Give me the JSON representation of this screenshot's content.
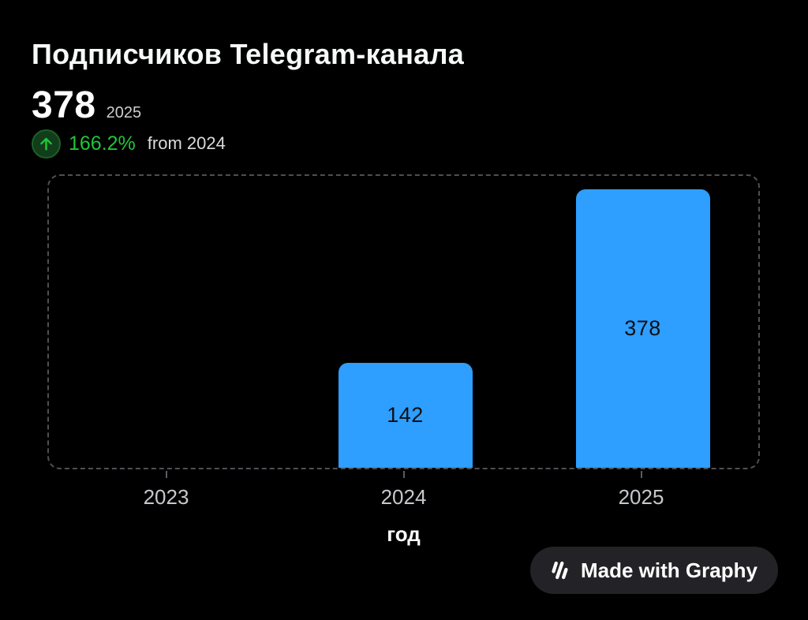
{
  "page": {
    "background_color": "#000000"
  },
  "header": {
    "title": "Подписчиков Telegram-канала",
    "kpi_value": "378",
    "kpi_year": "2025",
    "change": {
      "direction": "up",
      "percent": "166.2%",
      "reference": "from 2024",
      "accent_color": "#21c538"
    }
  },
  "chart_data": {
    "type": "bar",
    "title": "Подписчиков Telegram-канала",
    "categories": [
      "2023",
      "2024",
      "2025"
    ],
    "values": [
      0,
      142,
      378
    ],
    "value_labels": [
      "",
      "142",
      "378"
    ],
    "xlabel": "год",
    "ylabel": "",
    "ylim": [
      0,
      400
    ],
    "grid": false,
    "legend": false,
    "bar_color": "#2e9eff",
    "bar_value_text_color": "#0d1014",
    "axis_label_color": "#c6c8cc",
    "border_style": "dashed"
  },
  "badge": {
    "label": "Made with Graphy",
    "logo": "graphy-triple-slash"
  }
}
